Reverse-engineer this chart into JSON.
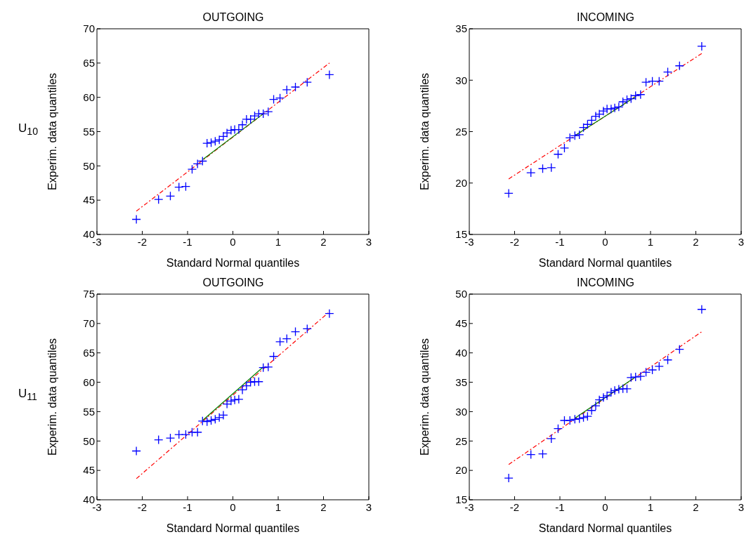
{
  "chart_data": [
    {
      "type": "scatter",
      "title": "OUTGOING",
      "xlabel": "Standard Normal quantiles",
      "ylabel": "Experim. data quantiles",
      "annotations": [
        "U$_{10}$"
      ],
      "x": [
        -2.13,
        -1.64,
        -1.38,
        -1.19,
        -1.04,
        -0.9,
        -0.78,
        -0.67,
        -0.57,
        -0.48,
        -0.39,
        -0.3,
        -0.21,
        -0.13,
        -0.04,
        0.04,
        0.13,
        0.21,
        0.3,
        0.39,
        0.48,
        0.57,
        0.67,
        0.78,
        0.9,
        1.04,
        1.19,
        1.38,
        1.64,
        2.13
      ],
      "xlim": [
        -3,
        3
      ],
      "xticks": [
        -3,
        -2,
        -1,
        0,
        1,
        2,
        3
      ],
      "ylim": [
        40,
        70
      ],
      "yticks": [
        40,
        45,
        50,
        55,
        60,
        65,
        70
      ],
      "series": [
        {
          "marker": "cross",
          "color": "#0000ff",
          "values": [
            42.2,
            45.1,
            45.6,
            46.9,
            47.0,
            49.5,
            50.3,
            50.7,
            53.3,
            53.4,
            53.6,
            53.8,
            54.3,
            54.8,
            55.2,
            55.3,
            55.3,
            56.0,
            56.8,
            56.8,
            57.3,
            57.6,
            57.6,
            57.9,
            59.7,
            59.9,
            61.1,
            61.5,
            62.2,
            63.3
          ]
        },
        {
          "type": "line",
          "color": "#ff0000",
          "line_style": "dashed",
          "x": [
            -2.13,
            2.13
          ],
          "values": [
            43.4,
            65.0
          ]
        },
        {
          "type": "line",
          "color": "#008000",
          "line_style": "solid",
          "x": [
            -0.67,
            0.67
          ],
          "values": [
            50.9,
            57.6
          ]
        }
      ]
    },
    {
      "type": "scatter",
      "title": "INCOMING",
      "xlabel": "Standard Normal quantiles",
      "ylabel": "Experim. data quantiles",
      "x": [
        -2.13,
        -1.64,
        -1.38,
        -1.19,
        -1.04,
        -0.9,
        -0.78,
        -0.67,
        -0.57,
        -0.48,
        -0.39,
        -0.3,
        -0.21,
        -0.13,
        -0.04,
        0.04,
        0.13,
        0.21,
        0.3,
        0.39,
        0.48,
        0.57,
        0.67,
        0.78,
        0.9,
        1.04,
        1.19,
        1.38,
        1.64,
        2.13
      ],
      "xlim": [
        -3,
        3
      ],
      "xticks": [
        -3,
        -2,
        -1,
        0,
        1,
        2,
        3
      ],
      "ylim": [
        15,
        35
      ],
      "yticks": [
        15,
        20,
        25,
        30,
        35
      ],
      "series": [
        {
          "marker": "cross",
          "color": "#0000ff",
          "values": [
            19.0,
            21.0,
            21.4,
            21.5,
            22.8,
            23.4,
            24.4,
            24.6,
            24.7,
            25.4,
            25.7,
            26.1,
            26.5,
            26.7,
            27.0,
            27.2,
            27.2,
            27.3,
            27.4,
            27.9,
            28.1,
            28.2,
            28.5,
            28.6,
            29.8,
            29.9,
            29.9,
            30.8,
            31.4,
            33.3
          ]
        },
        {
          "type": "line",
          "color": "#ff0000",
          "line_style": "dashed",
          "x": [
            -2.13,
            2.13
          ],
          "values": [
            20.4,
            32.6
          ]
        },
        {
          "type": "line",
          "color": "#008000",
          "line_style": "solid",
          "x": [
            -0.67,
            0.67
          ],
          "values": [
            24.6,
            28.4
          ]
        }
      ]
    },
    {
      "type": "scatter",
      "title": "OUTGOING",
      "xlabel": "Standard Normal quantiles",
      "ylabel": "Experim. data quantiles",
      "annotations": [
        "U$_{11}$"
      ],
      "x": [
        -2.13,
        -1.64,
        -1.38,
        -1.19,
        -1.04,
        -0.9,
        -0.78,
        -0.67,
        -0.57,
        -0.48,
        -0.39,
        -0.3,
        -0.21,
        -0.13,
        -0.04,
        0.04,
        0.13,
        0.21,
        0.3,
        0.39,
        0.48,
        0.57,
        0.67,
        0.78,
        0.9,
        1.04,
        1.19,
        1.38,
        1.64,
        2.13
      ],
      "xlim": [
        -3,
        3
      ],
      "xticks": [
        -3,
        -2,
        -1,
        0,
        1,
        2,
        3
      ],
      "ylim": [
        40,
        75
      ],
      "yticks": [
        40,
        45,
        50,
        55,
        60,
        65,
        70,
        75
      ],
      "series": [
        {
          "marker": "cross",
          "color": "#0000ff",
          "values": [
            48.3,
            50.2,
            50.5,
            51.1,
            51.1,
            51.5,
            51.5,
            53.4,
            53.3,
            53.5,
            53.7,
            54.0,
            54.4,
            56.3,
            56.8,
            57.0,
            57.1,
            58.7,
            59.4,
            60.0,
            60.1,
            60.1,
            62.5,
            62.6,
            64.4,
            66.9,
            67.4,
            68.6,
            69.1,
            71.7
          ]
        },
        {
          "type": "line",
          "color": "#ff0000",
          "line_style": "dashed",
          "x": [
            -2.13,
            2.13
          ],
          "values": [
            43.6,
            72.0
          ]
        },
        {
          "type": "line",
          "color": "#008000",
          "line_style": "solid",
          "x": [
            -0.67,
            0.67
          ],
          "values": [
            53.5,
            62.6
          ]
        }
      ]
    },
    {
      "type": "scatter",
      "title": "INCOMING",
      "xlabel": "Standard Normal quantiles",
      "ylabel": "Experim. data quantiles",
      "x": [
        -2.13,
        -1.64,
        -1.38,
        -1.19,
        -1.04,
        -0.9,
        -0.78,
        -0.67,
        -0.57,
        -0.48,
        -0.39,
        -0.3,
        -0.21,
        -0.13,
        -0.04,
        0.04,
        0.13,
        0.21,
        0.3,
        0.39,
        0.48,
        0.57,
        0.67,
        0.78,
        0.9,
        1.04,
        1.19,
        1.38,
        1.64,
        2.13
      ],
      "xlim": [
        -3,
        3
      ],
      "xticks": [
        -3,
        -2,
        -1,
        0,
        1,
        2,
        3
      ],
      "ylim": [
        15,
        50
      ],
      "yticks": [
        15,
        20,
        25,
        30,
        35,
        40,
        45,
        50
      ],
      "series": [
        {
          "marker": "cross",
          "color": "#0000ff",
          "values": [
            18.7,
            22.7,
            22.8,
            25.4,
            27.1,
            28.5,
            28.5,
            28.7,
            28.8,
            29.0,
            29.2,
            30.2,
            31.0,
            32.0,
            32.4,
            32.7,
            33.3,
            33.6,
            33.8,
            33.9,
            33.9,
            35.8,
            35.9,
            36.0,
            36.7,
            37.1,
            37.7,
            38.8,
            40.6,
            47.4
          ]
        },
        {
          "type": "line",
          "color": "#ff0000",
          "line_style": "dashed",
          "x": [
            -2.13,
            2.13
          ],
          "values": [
            21.0,
            43.6
          ]
        },
        {
          "type": "line",
          "color": "#008000",
          "line_style": "solid",
          "x": [
            -0.67,
            0.67
          ],
          "values": [
            28.9,
            35.9
          ]
        }
      ]
    }
  ]
}
